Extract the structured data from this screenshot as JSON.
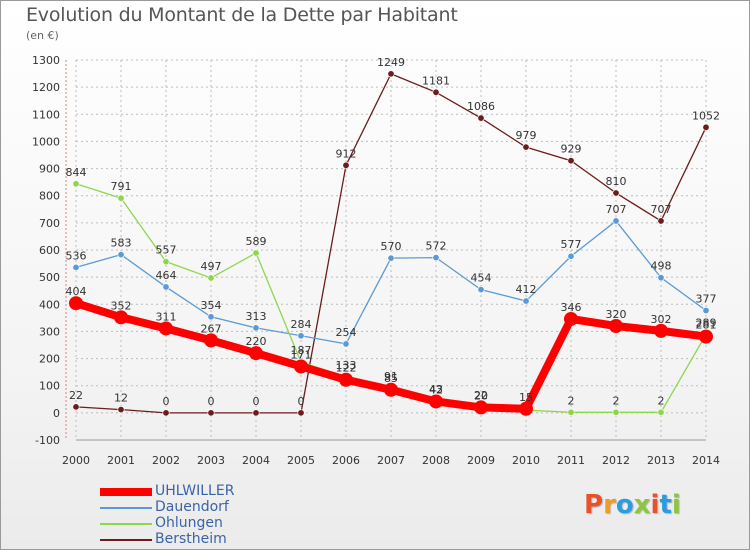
{
  "header": {
    "title": "Evolution du Montant de la Dette par Habitant",
    "subtitle": "(en €)"
  },
  "chart_data": {
    "type": "line",
    "title": "Evolution du Montant de la Dette par Habitant",
    "ylabel": "(en €)",
    "xlabel": "",
    "ylim": [
      -100,
      1300
    ],
    "yticks": [
      -100,
      0,
      100,
      200,
      300,
      400,
      500,
      600,
      700,
      800,
      900,
      1000,
      1100,
      1200,
      1300
    ],
    "categories": [
      "2000",
      "2001",
      "2002",
      "2003",
      "2004",
      "2005",
      "2006",
      "2007",
      "2008",
      "2009",
      "2010",
      "2011",
      "2012",
      "2013",
      "2014"
    ],
    "grid": true,
    "legend_position": "bottom-left",
    "series": [
      {
        "name": "UHLWILLER",
        "color": "#ff0000",
        "values": [
          404,
          352,
          311,
          267,
          220,
          171,
          122,
          85,
          42,
          20,
          15,
          346,
          320,
          302,
          281
        ],
        "labels": [
          "404",
          "352",
          "311",
          "267",
          "220",
          "171",
          "122",
          "85",
          "42",
          "20",
          "15",
          "346",
          "320",
          "302",
          "281"
        ]
      },
      {
        "name": "Dauendorf",
        "color": "#5b9bd5",
        "values": [
          536,
          583,
          464,
          354,
          313,
          284,
          254,
          570,
          572,
          454,
          412,
          577,
          707,
          498,
          377
        ],
        "labels": [
          "536",
          "583",
          "464",
          "354",
          "313",
          "284",
          "254",
          "570",
          "572",
          "454",
          "412",
          "577",
          "707",
          "498",
          "377"
        ]
      },
      {
        "name": "Ohlungen",
        "color": "#8ed64d",
        "values": [
          844,
          791,
          557,
          497,
          589,
          187,
          133,
          91,
          43,
          22,
          10,
          2,
          2,
          2,
          289
        ],
        "labels": [
          "844",
          "791",
          "557",
          "497",
          "589",
          "187",
          "133",
          "91",
          "43",
          "22",
          "",
          "2",
          "2",
          "2",
          "289"
        ]
      },
      {
        "name": "Berstheim",
        "color": "#6b1d1d",
        "values": [
          22,
          12,
          0,
          0,
          0,
          0,
          912,
          1249,
          1181,
          1086,
          979,
          929,
          810,
          707,
          1052
        ],
        "labels": [
          "22",
          "12",
          "0",
          "0",
          "0",
          "0",
          "912",
          "1249",
          "1181",
          "1086",
          "979",
          "929",
          "810",
          "707",
          "1052"
        ]
      }
    ]
  },
  "logo": {
    "text": "Proxiti"
  }
}
